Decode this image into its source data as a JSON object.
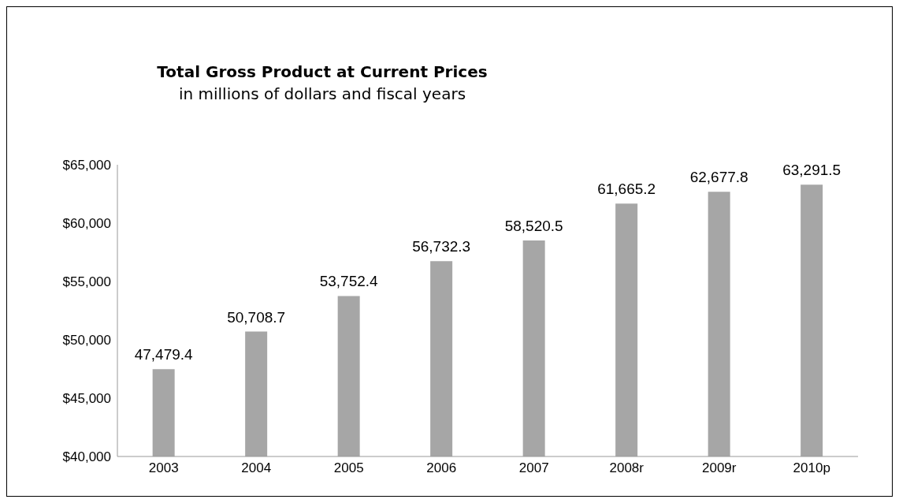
{
  "chart_data": {
    "type": "bar",
    "title": "Total Gross Product at Current Prices",
    "subtitle": "in millions of dollars and fiscal years",
    "categories": [
      "2003",
      "2004",
      "2005",
      "2006",
      "2007",
      "2008r",
      "2009r",
      "2010p"
    ],
    "values": [
      47479.4,
      50708.7,
      53752.4,
      56732.3,
      58520.5,
      61665.2,
      62677.8,
      63291.5
    ],
    "value_labels": [
      "47,479.4",
      "50,708.7",
      "53,752.4",
      "56,732.3",
      "58,520.5",
      "61,665.2",
      "62,677.8",
      "63,291.5"
    ],
    "color": "#a6a6a6",
    "ylim": [
      40000,
      65000
    ],
    "yticks": [
      {
        "value": 40000,
        "label": "$40,000"
      },
      {
        "value": 45000,
        "label": "$45,000"
      },
      {
        "value": 50000,
        "label": "$50,000"
      },
      {
        "value": 55000,
        "label": "$55,000"
      },
      {
        "value": 60000,
        "label": "$60,000"
      },
      {
        "value": 65000,
        "label": "$65,000"
      }
    ],
    "grid": false,
    "legend": false
  }
}
